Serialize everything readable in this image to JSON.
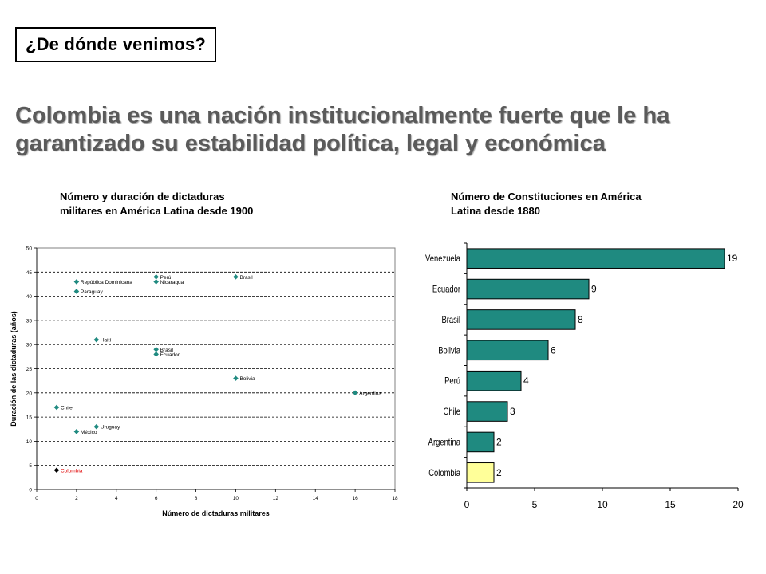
{
  "header": {
    "tag": "¿De dónde venimos?",
    "headline_line1": "Colombia es una nación institucionalmente fuerte que le ha",
    "headline_line2": "garantizado su estabilidad política, legal y económica"
  },
  "colors": {
    "teal": "#1f8a80",
    "highlight_bar": "#ffff99",
    "highlight_point": "#000000",
    "highlight_label": "#e00000"
  },
  "chart_data": [
    {
      "type": "scatter",
      "title": "Número y duración de dictaduras militares en América Latina desde 1900",
      "title_line1": "Número y duración de dictaduras",
      "title_line2": "militares en América Latina desde 1900",
      "xlabel": "Número de dictaduras militares",
      "ylabel": "Duración de las dictaduras (años)",
      "xlim": [
        0,
        18
      ],
      "ylim": [
        0,
        50
      ],
      "xticks": [
        0,
        2,
        4,
        6,
        8,
        10,
        12,
        14,
        16,
        18
      ],
      "yticks": [
        0,
        5,
        10,
        15,
        20,
        25,
        30,
        35,
        40,
        45,
        50
      ],
      "grid": "horizontal dashed",
      "points": [
        {
          "label": "Colombia",
          "x": 1,
          "y": 4,
          "highlight": true
        },
        {
          "label": "Chile",
          "x": 1,
          "y": 17
        },
        {
          "label": "México",
          "x": 2,
          "y": 12
        },
        {
          "label": "Uruguay",
          "x": 3,
          "y": 13
        },
        {
          "label": "Paraguay",
          "x": 2,
          "y": 41
        },
        {
          "label": "República Dominicana",
          "x": 2,
          "y": 43
        },
        {
          "label": "Haití",
          "x": 3,
          "y": 31
        },
        {
          "label": "Perú",
          "x": 6,
          "y": 44
        },
        {
          "label": "Nicaragua",
          "x": 6,
          "y": 43
        },
        {
          "label": "Brasil",
          "x": 6,
          "y": 29
        },
        {
          "label": "Ecuador",
          "x": 6,
          "y": 28
        },
        {
          "label": "Brasil",
          "x": 10,
          "y": 44
        },
        {
          "label": "Bolivia",
          "x": 10,
          "y": 23
        },
        {
          "label": "Argentina",
          "x": 16,
          "y": 20
        }
      ]
    },
    {
      "type": "bar",
      "orientation": "horizontal",
      "title": "Número de Constituciones en América Latina desde 1880",
      "title_line1": "Número de Constituciones en América",
      "title_line2": "Latina desde 1880",
      "categories": [
        "Venezuela",
        "Ecuador",
        "Brasil",
        "Bolivia",
        "Perú",
        "Chile",
        "Argentina",
        "Colombia"
      ],
      "values": [
        19,
        9,
        8,
        6,
        4,
        3,
        2,
        2
      ],
      "highlight": "Colombia",
      "xlim": [
        0,
        20
      ],
      "xticks": [
        0,
        5,
        10,
        15,
        20
      ]
    }
  ]
}
